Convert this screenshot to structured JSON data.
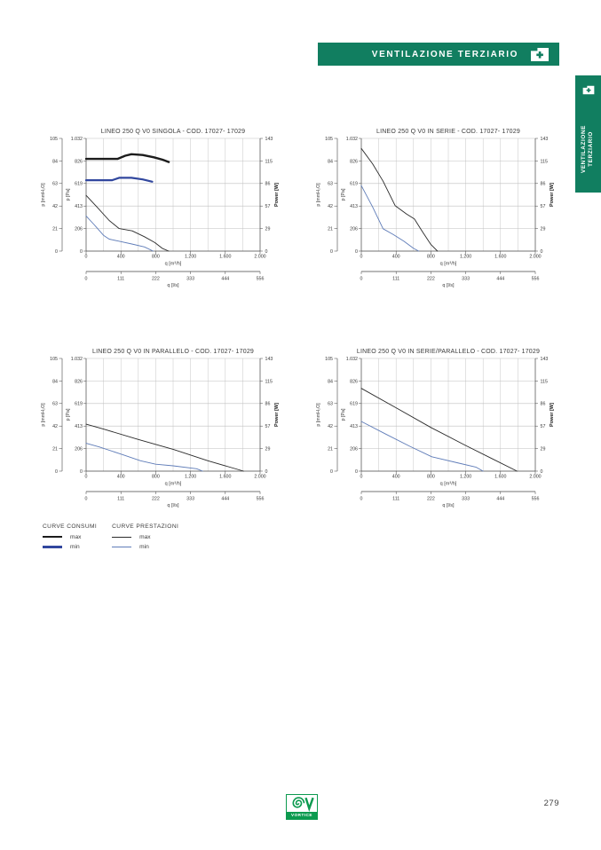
{
  "colors": {
    "brand_green": "#117e60",
    "logo_green": "#0c9a4f",
    "text": "#3c3c3c",
    "gridline": "#c6c6c6",
    "axis": "#444444"
  },
  "banner": {
    "label": "VENTILAZIONE TERZIARIO",
    "icon": "folder-plus-icon"
  },
  "side_tab": {
    "label_line1": "VENTILAZIONE",
    "label_line2": "TERZIARIO",
    "icon": "folder-plus-icon"
  },
  "axes": {
    "y_left_outer": {
      "label": "p [mmH₂O]",
      "ticks": [
        "0",
        "21",
        "42",
        "63",
        "84",
        "105"
      ]
    },
    "y_left_inner": {
      "label": "p [Pa]",
      "ticks": [
        "0",
        "206",
        "413",
        "619",
        "826",
        "1.032"
      ],
      "max": 1032
    },
    "y_right": {
      "label": "Power [W]",
      "ticks": [
        "0",
        "29",
        "57",
        "86",
        "115",
        "143"
      ],
      "max": 143
    },
    "x_primary": {
      "label": "q [m³/h]",
      "ticks": [
        "0",
        "400",
        "800",
        "1.200",
        "1.600",
        "2.000"
      ],
      "max": 2000
    },
    "x_secondary": {
      "label": "q [l/s]",
      "ticks": [
        "0",
        "111",
        "222",
        "333",
        "444",
        "556"
      ]
    }
  },
  "styles": {
    "consumi_max": {
      "color": "#1c1c1c",
      "width": 2.4
    },
    "consumi_min": {
      "color": "#31479e",
      "width": 2.2
    },
    "prestazioni_max": {
      "color": "#2a2a2a",
      "width": 0.9
    },
    "prestazioni_min": {
      "color": "#5f7cb8",
      "width": 0.9
    }
  },
  "chart_data": [
    {
      "type": "line",
      "title": "LINEO 250 Q  V0 SINGOLA - COD. 17027- 17029",
      "xlabel": "q [m³/h]",
      "xlim": [
        0,
        2000
      ],
      "ylabel_left": "p [Pa]",
      "ylim_left": [
        0,
        1032
      ],
      "ylabel_right": "Power [W]",
      "ylim_right": [
        0,
        143
      ],
      "grid": true,
      "legend_position": "none",
      "series": [
        {
          "name": "consumi max",
          "style": "consumi_max",
          "axis": "power",
          "unit": "W",
          "points": [
            [
              0,
              117
            ],
            [
              360,
              117
            ],
            [
              450,
              121
            ],
            [
              520,
              123
            ],
            [
              650,
              122
            ],
            [
              780,
              119
            ],
            [
              880,
              116
            ],
            [
              950,
              113
            ]
          ]
        },
        {
          "name": "consumi min",
          "style": "consumi_min",
          "axis": "power",
          "unit": "W",
          "points": [
            [
              0,
              90
            ],
            [
              300,
              90
            ],
            [
              380,
              93
            ],
            [
              520,
              93
            ],
            [
              650,
              91
            ],
            [
              760,
              88
            ]
          ]
        },
        {
          "name": "prestazioni max",
          "style": "prestazioni_max",
          "axis": "pressure",
          "unit": "Pa",
          "points": [
            [
              0,
              510
            ],
            [
              130,
              400
            ],
            [
              265,
              280
            ],
            [
              380,
              206
            ],
            [
              530,
              185
            ],
            [
              670,
              132
            ],
            [
              790,
              78
            ],
            [
              875,
              25
            ],
            [
              950,
              0
            ]
          ]
        },
        {
          "name": "prestazioni min",
          "style": "prestazioni_min",
          "axis": "pressure",
          "unit": "Pa",
          "points": [
            [
              0,
              322
            ],
            [
              95,
              240
            ],
            [
              200,
              145
            ],
            [
              265,
              110
            ],
            [
              370,
              92
            ],
            [
              525,
              65
            ],
            [
              670,
              38
            ],
            [
              770,
              0
            ]
          ]
        }
      ]
    },
    {
      "type": "line",
      "title": "LINEO 250 Q V0 IN SERIE - COD. 17027- 17029",
      "xlabel": "q [m³/h]",
      "xlim": [
        0,
        2000
      ],
      "ylabel_left": "p [Pa]",
      "ylim_left": [
        0,
        1032
      ],
      "ylabel_right": "Power [W]",
      "ylim_right": [
        0,
        143
      ],
      "grid": true,
      "legend_position": "none",
      "series": [
        {
          "name": "prestazioni max",
          "style": "prestazioni_max",
          "axis": "pressure",
          "unit": "Pa",
          "points": [
            [
              0,
              940
            ],
            [
              130,
              800
            ],
            [
              250,
              640
            ],
            [
              390,
              415
            ],
            [
              520,
              340
            ],
            [
              610,
              295
            ],
            [
              700,
              180
            ],
            [
              800,
              60
            ],
            [
              875,
              0
            ]
          ]
        },
        {
          "name": "prestazioni min",
          "style": "prestazioni_min",
          "axis": "pressure",
          "unit": "Pa",
          "points": [
            [
              0,
              600
            ],
            [
              130,
              405
            ],
            [
              250,
              205
            ],
            [
              370,
              150
            ],
            [
              490,
              90
            ],
            [
              600,
              25
            ],
            [
              660,
              0
            ]
          ]
        }
      ]
    },
    {
      "type": "line",
      "title": "LINEO 250 Q V0 IN PARALLELO - COD. 17027- 17029",
      "xlabel": "q [m³/h]",
      "xlim": [
        0,
        2000
      ],
      "ylabel_left": "p [Pa]",
      "ylim_left": [
        0,
        1032
      ],
      "ylabel_right": "Power [W]",
      "ylim_right": [
        0,
        143
      ],
      "grid": true,
      "legend_position": "none",
      "series": [
        {
          "name": "prestazioni max",
          "style": "prestazioni_max",
          "axis": "pressure",
          "unit": "Pa",
          "points": [
            [
              0,
              430
            ],
            [
              200,
              385
            ],
            [
              600,
              290
            ],
            [
              1000,
              200
            ],
            [
              1400,
              95
            ],
            [
              1810,
              0
            ]
          ]
        },
        {
          "name": "prestazioni min",
          "style": "prestazioni_min",
          "axis": "pressure",
          "unit": "Pa",
          "points": [
            [
              0,
              255
            ],
            [
              150,
              222
            ],
            [
              405,
              155
            ],
            [
              625,
              95
            ],
            [
              800,
              63
            ],
            [
              1000,
              49
            ],
            [
              1270,
              22
            ],
            [
              1340,
              0
            ]
          ]
        }
      ]
    },
    {
      "type": "line",
      "title": "LINEO 250 Q V0 IN SERIE/PARALLELO - COD. 17027- 17029",
      "xlabel": "q [m³/h]",
      "xlim": [
        0,
        2000
      ],
      "ylabel_left": "p [Pa]",
      "ylim_left": [
        0,
        1032
      ],
      "ylabel_right": "Power [W]",
      "ylim_right": [
        0,
        143
      ],
      "grid": true,
      "legend_position": "none",
      "series": [
        {
          "name": "prestazioni max",
          "style": "prestazioni_max",
          "axis": "pressure",
          "unit": "Pa",
          "points": [
            [
              0,
              758
            ],
            [
              400,
              580
            ],
            [
              800,
              400
            ],
            [
              1200,
              235
            ],
            [
              1500,
              115
            ],
            [
              1790,
              0
            ]
          ]
        },
        {
          "name": "prestazioni min",
          "style": "prestazioni_min",
          "axis": "pressure",
          "unit": "Pa",
          "points": [
            [
              0,
              455
            ],
            [
              280,
              340
            ],
            [
              555,
              228
            ],
            [
              810,
              132
            ],
            [
              1100,
              77
            ],
            [
              1320,
              36
            ],
            [
              1400,
              0
            ]
          ]
        }
      ]
    }
  ],
  "legend": {
    "groups": [
      {
        "title": "CURVE CONSUMI",
        "items": [
          {
            "label": "max",
            "style": "consumi_max"
          },
          {
            "label": "min",
            "style": "consumi_min"
          }
        ]
      },
      {
        "title": "CURVE PRESTAZIONI",
        "items": [
          {
            "label": "max",
            "style": "prestazioni_max"
          },
          {
            "label": "min",
            "style": "prestazioni_min"
          }
        ]
      }
    ]
  },
  "footer": {
    "logo_text": "VORTICE",
    "page_number": "279"
  }
}
